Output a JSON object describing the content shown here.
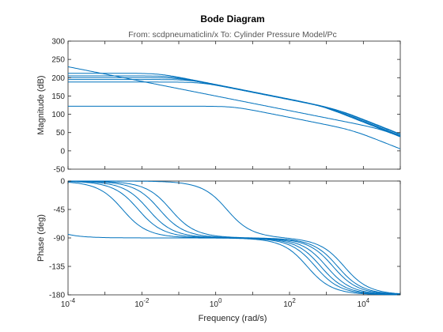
{
  "chart_data": {
    "type": "line",
    "title": "Bode Diagram",
    "subtitle": "From: scdpneumaticlin/x  To: Cylinder Pressure Model/Pc",
    "xlabel": "Frequency  (rad/s)",
    "xscale": "log",
    "xlim": [
      0.0001,
      100000
    ],
    "xticks": [
      {
        "value": 0.0001,
        "base": "10",
        "exp": "-4"
      },
      {
        "value": 0.01,
        "base": "10",
        "exp": "-2"
      },
      {
        "value": 1,
        "base": "10",
        "exp": "0"
      },
      {
        "value": 100,
        "base": "10",
        "exp": "2"
      },
      {
        "value": 10000,
        "base": "10",
        "exp": "4"
      }
    ],
    "line_color": "#0072bd",
    "grid": false,
    "panels": {
      "magnitude": {
        "ylabel": "Magnitude (dB)",
        "ylim": [
          -50,
          300
        ],
        "yticks": [
          -50,
          0,
          50,
          100,
          150,
          200,
          250,
          300
        ],
        "series": [
          {
            "pole": 1e-05,
            "k_db": 250,
            "hf": 30000
          },
          {
            "pole": 0.03,
            "k_db": 212,
            "hf": 700
          },
          {
            "pole": 0.06,
            "k_db": 205,
            "hf": 1000
          },
          {
            "pole": 0.1,
            "k_db": 200,
            "hf": 1200
          },
          {
            "pole": 0.2,
            "k_db": 195,
            "hf": 1500
          },
          {
            "pole": 0.4,
            "k_db": 188,
            "hf": 2000
          },
          {
            "pole": 3,
            "k_db": 122,
            "hf": 5000
          }
        ]
      },
      "phase": {
        "ylabel": "Phase (deg)",
        "ylim": [
          -180,
          0
        ],
        "yticks": [
          -180,
          -135,
          -90,
          -45,
          0
        ],
        "series": [
          {
            "p1": 1e-05,
            "p2": 300
          },
          {
            "p1": 0.003,
            "p2": 500
          },
          {
            "p1": 0.008,
            "p2": 700
          },
          {
            "p1": 0.015,
            "p2": 1000
          },
          {
            "p1": 0.03,
            "p2": 1500
          },
          {
            "p1": 0.06,
            "p2": 2000
          },
          {
            "p1": 2,
            "p2": 3000
          }
        ]
      }
    }
  }
}
